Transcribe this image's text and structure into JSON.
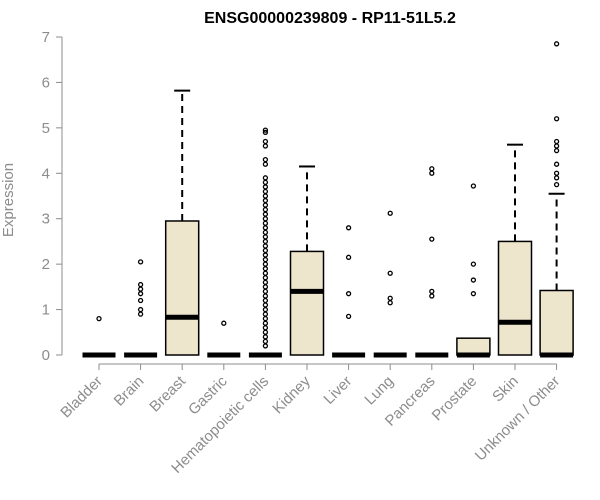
{
  "chart_data": {
    "type": "boxplot",
    "title": "ENSG00000239809 - RP11-51L5.2",
    "ylabel": "Expression",
    "ylim": [
      0,
      7
    ],
    "yticks": [
      0,
      1,
      2,
      3,
      4,
      5,
      6,
      7
    ],
    "colors": {
      "box_fill": "#ede6cd",
      "box_stroke": "#000000",
      "axis": "#8c8c8c"
    },
    "categories": [
      "Bladder",
      "Brain",
      "Breast",
      "Gastric",
      "Hematopoietic cells",
      "Kidney",
      "Liver",
      "Lung",
      "Pancreas",
      "Prostate",
      "Skin",
      "Unknown / Other"
    ],
    "boxes": [
      {
        "q1": 0,
        "median": 0,
        "q3": 0,
        "whisker_low": 0,
        "whisker_high": 0,
        "outliers": [
          0.8
        ]
      },
      {
        "q1": 0,
        "median": 0,
        "q3": 0,
        "whisker_low": 0,
        "whisker_high": 0,
        "outliers": [
          0.9,
          1.0,
          1.2,
          1.35,
          1.45,
          1.55,
          2.05
        ]
      },
      {
        "q1": 0,
        "median": 0.83,
        "q3": 2.95,
        "whisker_low": 0,
        "whisker_high": 5.82,
        "outliers": []
      },
      {
        "q1": 0,
        "median": 0,
        "q3": 0,
        "whisker_low": 0,
        "whisker_high": 0,
        "outliers": [
          0.7
        ]
      },
      {
        "q1": 0,
        "median": 0,
        "q3": 0,
        "whisker_low": 0,
        "whisker_high": 0,
        "outliers": [
          0.2,
          0.3,
          0.4,
          0.5,
          0.6,
          0.7,
          0.8,
          0.9,
          1.0,
          1.1,
          1.2,
          1.3,
          1.4,
          1.5,
          1.6,
          1.7,
          1.8,
          1.9,
          2.0,
          2.1,
          2.2,
          2.3,
          2.4,
          2.5,
          2.6,
          2.7,
          2.8,
          2.9,
          3.0,
          3.1,
          3.2,
          3.3,
          3.4,
          3.5,
          3.6,
          3.7,
          3.8,
          3.9,
          4.2,
          4.3,
          4.6,
          4.7,
          4.9,
          4.95
        ]
      },
      {
        "q1": 0,
        "median": 1.4,
        "q3": 2.28,
        "whisker_low": 0,
        "whisker_high": 4.15,
        "outliers": []
      },
      {
        "q1": 0,
        "median": 0,
        "q3": 0,
        "whisker_low": 0,
        "whisker_high": 0,
        "outliers": [
          0.85,
          1.35,
          2.15,
          2.8
        ]
      },
      {
        "q1": 0,
        "median": 0,
        "q3": 0,
        "whisker_low": 0,
        "whisker_high": 0,
        "outliers": [
          1.15,
          1.25,
          1.8,
          3.12
        ]
      },
      {
        "q1": 0,
        "median": 0,
        "q3": 0,
        "whisker_low": 0,
        "whisker_high": 0,
        "outliers": [
          1.3,
          1.4,
          2.55,
          4.0,
          4.1
        ]
      },
      {
        "q1": 0,
        "median": 0,
        "q3": 0.37,
        "whisker_low": 0,
        "whisker_high": 0.37,
        "outliers": [
          1.35,
          1.65,
          2.0,
          3.72
        ]
      },
      {
        "q1": 0,
        "median": 0.72,
        "q3": 2.5,
        "whisker_low": 0,
        "whisker_high": 4.63,
        "outliers": []
      },
      {
        "q1": 0,
        "median": 0,
        "q3": 1.42,
        "whisker_low": 0,
        "whisker_high": 3.55,
        "outliers": [
          3.75,
          3.9,
          4.0,
          4.2,
          4.5,
          4.6,
          4.7,
          5.2,
          6.85
        ]
      }
    ]
  }
}
